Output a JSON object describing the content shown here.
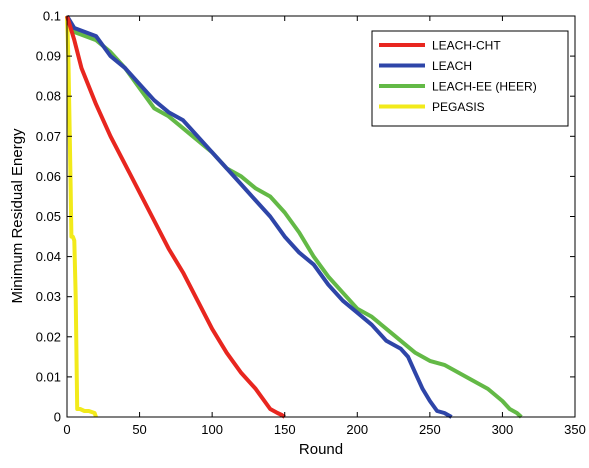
{
  "chart_data": {
    "type": "line",
    "xlabel": "Round",
    "ylabel": "Minimum Residual Energy",
    "xlim": [
      0,
      350
    ],
    "ylim": [
      0,
      0.1
    ],
    "xticks": [
      0,
      50,
      100,
      150,
      200,
      250,
      300,
      350
    ],
    "yticks": [
      0,
      0.01,
      0.02,
      0.03,
      0.04,
      0.05,
      0.06,
      0.07,
      0.08,
      0.09,
      0.1
    ],
    "xtick_labels": [
      "0",
      "50",
      "100",
      "150",
      "200",
      "250",
      "300",
      "350"
    ],
    "ytick_labels": [
      "0",
      "0.01",
      "0.02",
      "0.03",
      "0.04",
      "0.05",
      "0.06",
      "0.07",
      "0.08",
      "0.09",
      "0.1"
    ],
    "grid": false,
    "legend_position": "top-right",
    "series": [
      {
        "name": "LEACH-CHT",
        "color": "#e8261f",
        "x": [
          0,
          5,
          10,
          20,
          30,
          40,
          50,
          60,
          70,
          80,
          90,
          100,
          110,
          120,
          130,
          140,
          145,
          148,
          150
        ],
        "y": [
          0.1,
          0.094,
          0.087,
          0.078,
          0.07,
          0.063,
          0.056,
          0.049,
          0.042,
          0.036,
          0.029,
          0.022,
          0.016,
          0.011,
          0.007,
          0.002,
          0.001,
          0.0005,
          0
        ]
      },
      {
        "name": "LEACH",
        "color": "#2e45a8",
        "x": [
          0,
          5,
          20,
          30,
          40,
          50,
          60,
          70,
          80,
          90,
          100,
          110,
          120,
          130,
          140,
          150,
          160,
          170,
          180,
          190,
          200,
          210,
          220,
          230,
          235,
          240,
          245,
          250,
          255,
          260,
          265
        ],
        "y": [
          0.1,
          0.097,
          0.095,
          0.09,
          0.087,
          0.083,
          0.079,
          0.076,
          0.074,
          0.07,
          0.066,
          0.062,
          0.058,
          0.054,
          0.05,
          0.045,
          0.041,
          0.038,
          0.033,
          0.029,
          0.026,
          0.023,
          0.019,
          0.017,
          0.015,
          0.011,
          0.007,
          0.004,
          0.0015,
          0.001,
          0
        ]
      },
      {
        "name": "LEACH-EE (HEER)",
        "color": "#63b946",
        "x": [
          0,
          5,
          20,
          30,
          40,
          50,
          60,
          70,
          80,
          90,
          100,
          110,
          120,
          130,
          140,
          150,
          160,
          170,
          180,
          190,
          200,
          210,
          220,
          230,
          240,
          250,
          260,
          270,
          280,
          290,
          300,
          305,
          310,
          313
        ],
        "y": [
          0.1,
          0.096,
          0.094,
          0.091,
          0.087,
          0.082,
          0.077,
          0.075,
          0.072,
          0.069,
          0.066,
          0.062,
          0.06,
          0.057,
          0.055,
          0.051,
          0.046,
          0.04,
          0.035,
          0.031,
          0.027,
          0.025,
          0.022,
          0.019,
          0.016,
          0.014,
          0.013,
          0.011,
          0.009,
          0.007,
          0.004,
          0.002,
          0.001,
          0
        ]
      },
      {
        "name": "PEGASIS",
        "color": "#f2ea1a",
        "x": [
          0,
          0.5,
          1,
          1.5,
          2,
          2.5,
          3,
          4,
          5,
          6,
          7,
          9,
          12,
          15,
          19,
          20
        ],
        "y": [
          0.1,
          0.095,
          0.088,
          0.078,
          0.068,
          0.058,
          0.045,
          0.045,
          0.044,
          0.03,
          0.002,
          0.002,
          0.0015,
          0.0015,
          0.001,
          0
        ]
      }
    ]
  }
}
